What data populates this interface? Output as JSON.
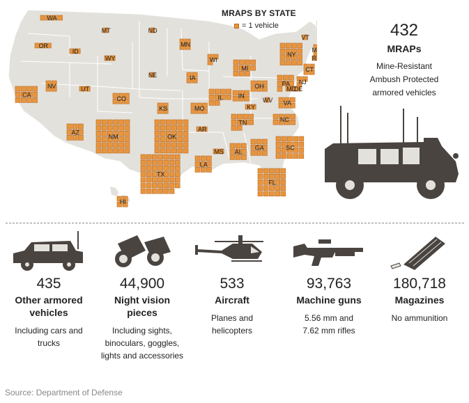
{
  "legend": {
    "title": "MRAPS BY STATE",
    "unit_text": "= 1 vehicle",
    "square_color": "#e8953e"
  },
  "mraps": {
    "count": "432",
    "label": "MRAPs",
    "description": [
      "Mine-Resistant",
      "Ambush Protected",
      "armored vehicles"
    ]
  },
  "states": [
    {
      "abbr": "WA",
      "count": 4
    },
    {
      "abbr": "OR",
      "count": 3
    },
    {
      "abbr": "ID",
      "count": 2
    },
    {
      "abbr": "MT",
      "count": 1
    },
    {
      "abbr": "ND",
      "count": 1
    },
    {
      "abbr": "MN",
      "count": 4
    },
    {
      "abbr": "WI",
      "count": 3
    },
    {
      "abbr": "MI",
      "count": 11
    },
    {
      "abbr": "NY",
      "count": 16
    },
    {
      "abbr": "VT",
      "count": 1
    },
    {
      "abbr": "ME",
      "count": 2
    },
    {
      "abbr": "MA",
      "count": 2
    },
    {
      "abbr": "CT",
      "count": 4
    },
    {
      "abbr": "RI",
      "count": 1
    },
    {
      "abbr": "NJ",
      "count": 3
    },
    {
      "abbr": "PA",
      "count": 7
    },
    {
      "abbr": "MD",
      "count": 2
    },
    {
      "abbr": "DE",
      "count": 1
    },
    {
      "abbr": "OH",
      "count": 6
    },
    {
      "abbr": "IN",
      "count": 6
    },
    {
      "abbr": "IL",
      "count": 10
    },
    {
      "abbr": "IA",
      "count": 4
    },
    {
      "abbr": "WY",
      "count": 2
    },
    {
      "abbr": "NE",
      "count": 1
    },
    {
      "abbr": "NV",
      "count": 4
    },
    {
      "abbr": "UT",
      "count": 2
    },
    {
      "abbr": "CO",
      "count": 6
    },
    {
      "abbr": "CA",
      "count": 12
    },
    {
      "abbr": "KS",
      "count": 4
    },
    {
      "abbr": "MO",
      "count": 6
    },
    {
      "abbr": "KY",
      "count": 2
    },
    {
      "abbr": "WV",
      "count": 1
    },
    {
      "abbr": "VA",
      "count": 6
    },
    {
      "abbr": "NC",
      "count": 8
    },
    {
      "abbr": "TN",
      "count": 10
    },
    {
      "abbr": "AR",
      "count": 2
    },
    {
      "abbr": "OK",
      "count": 36
    },
    {
      "abbr": "NM",
      "count": 36
    },
    {
      "abbr": "AZ",
      "count": 9
    },
    {
      "abbr": "TX",
      "count": 48
    },
    {
      "abbr": "LA",
      "count": 9
    },
    {
      "abbr": "MS",
      "count": 2
    },
    {
      "abbr": "AL",
      "count": 9
    },
    {
      "abbr": "GA",
      "count": 9
    },
    {
      "abbr": "SC",
      "count": 20
    },
    {
      "abbr": "FL",
      "count": 25
    },
    {
      "abbr": "HI",
      "count": 4
    }
  ],
  "equipment": [
    {
      "icon": "humvee-icon",
      "number": "435",
      "label": [
        "Other armored",
        "vehicles"
      ],
      "description": [
        "Including cars and",
        "trucks"
      ]
    },
    {
      "icon": "night-vision-icon",
      "number": "44,900",
      "label": [
        "Night vision",
        "pieces"
      ],
      "description": [
        "Including sights,",
        "binoculars, goggles,",
        "lights and accessories"
      ]
    },
    {
      "icon": "helicopter-icon",
      "number": "533",
      "label": [
        "Aircraft"
      ],
      "description": [
        "Planes and",
        "helicopters"
      ]
    },
    {
      "icon": "rifle-icon",
      "number": "93,763",
      "label": [
        "Machine guns"
      ],
      "description": [
        "5.56 mm and",
        "7.62 mm rifles"
      ]
    },
    {
      "icon": "magazine-icon",
      "number": "180,718",
      "label": [
        "Magazines"
      ],
      "description": [
        "No ammunition"
      ]
    }
  ],
  "source": "Source: Department of Defense",
  "colors": {
    "map_land": "#e6e4df",
    "map_border": "#ffffff",
    "square": "#e8953e",
    "square_border": "#b86a20",
    "icon": "#4a4440"
  }
}
